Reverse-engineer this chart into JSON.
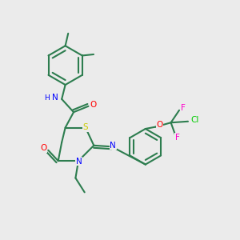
{
  "bg_color": "#ebebeb",
  "bond_color": "#2d7d4f",
  "bond_width": 1.5,
  "atom_colors": {
    "N": "#0000ff",
    "O": "#ff0000",
    "S": "#cccc00",
    "F": "#ff00cc",
    "Cl": "#00cc00",
    "H": "#0000ff",
    "C": "#2d7d4f"
  },
  "figsize": [
    3.0,
    3.0
  ],
  "dpi": 100
}
